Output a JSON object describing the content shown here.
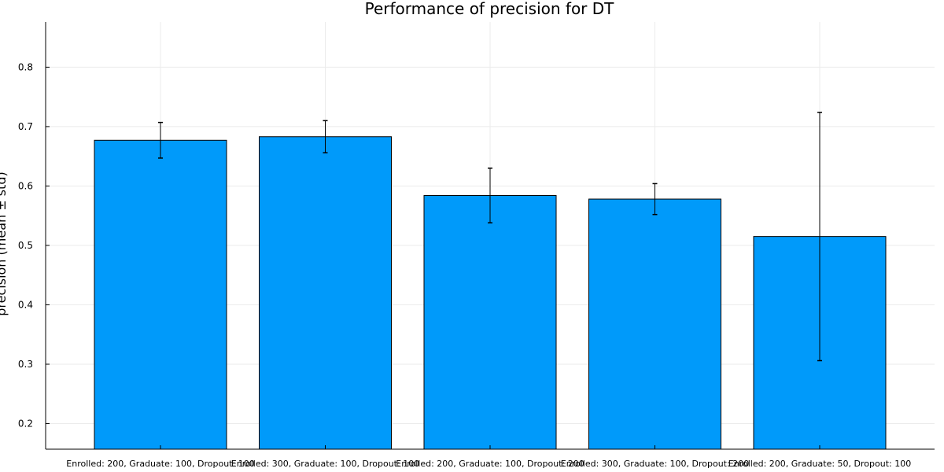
{
  "chart_data": {
    "type": "bar",
    "title": "Performance of precision for DT",
    "xlabel": "",
    "ylabel": "precision (mean ± std)",
    "categories": [
      "Enrolled: 200, Graduate: 100, Dropout: 100",
      "Enrolled: 300, Graduate: 100, Dropout: 100",
      "Enrolled: 200, Graduate: 100, Dropout: 200",
      "Enrolled: 300, Graduate: 100, Dropout: 200",
      "Enrolled: 200, Graduate: 50, Dropout: 100"
    ],
    "values": [
      0.677,
      0.683,
      0.584,
      0.578,
      0.515
    ],
    "errors": [
      0.03,
      0.027,
      0.046,
      0.026,
      0.209
    ],
    "yticks": [
      0.2,
      0.3,
      0.4,
      0.5,
      0.6,
      0.7,
      0.8
    ],
    "ylim": [
      0.157,
      0.876
    ],
    "grid": true,
    "legend": "none",
    "colors": {
      "bar": "#009AFA",
      "bar_edge": "#000000",
      "grid": "#EBEBEB",
      "axis": "#000000"
    }
  }
}
